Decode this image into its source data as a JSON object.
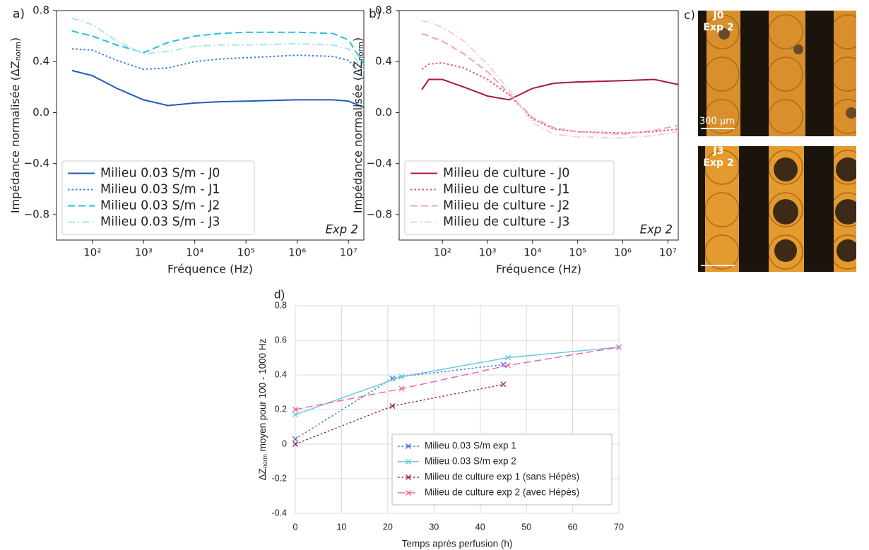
{
  "chart_data": [
    {
      "type": "line",
      "panel_label": "a)",
      "xscale": "log",
      "frame": true,
      "grid": false,
      "legend": "lower left",
      "xlabel": "Fréquence (Hz)",
      "ylabel": {
        "text": "Impédance normalisée (ΔZ",
        "sub": "norm",
        "end": ")"
      },
      "annotation": "Exp 2",
      "xlim": [
        20,
        20000000
      ],
      "xticks": [
        {
          "value": 100,
          "label": "10²"
        },
        {
          "value": 1000,
          "label": "10³"
        },
        {
          "value": 10000,
          "label": "10⁴"
        },
        {
          "value": 100000,
          "label": "10⁵"
        },
        {
          "value": 1000000,
          "label": "10⁶"
        },
        {
          "value": 10000000,
          "label": "10⁷"
        }
      ],
      "ylim": [
        -1.0,
        0.8
      ],
      "yticks": [
        {
          "value": -0.8,
          "label": "−0.8"
        },
        {
          "value": -0.4,
          "label": "−0.4"
        },
        {
          "value": 0,
          "label": "0.0"
        },
        0.4,
        0.8
      ],
      "x": [
        40,
        100,
        300,
        1000,
        3000,
        10000,
        30000,
        100000,
        1000000,
        5000000,
        10000000,
        20000000
      ],
      "series": [
        {
          "name": "Milieu 0.03 S/m - J0",
          "color": "#1f5cb8",
          "dash": "solid",
          "values": [
            0.33,
            0.29,
            0.19,
            0.1,
            0.055,
            0.075,
            0.085,
            0.09,
            0.1,
            0.1,
            0.09,
            0.04
          ]
        },
        {
          "name": "Milieu 0.03 S/m - J1",
          "color": "#3d7fe0",
          "dash": "dotted",
          "values": [
            0.5,
            0.49,
            0.41,
            0.34,
            0.35,
            0.4,
            0.42,
            0.43,
            0.45,
            0.44,
            0.41,
            0.28
          ]
        },
        {
          "name": "Milieu 0.03 S/m - J2",
          "color": "#1fc0ea",
          "dash": "dashed",
          "values": [
            0.64,
            0.6,
            0.53,
            0.47,
            0.55,
            0.6,
            0.62,
            0.63,
            0.63,
            0.62,
            0.57,
            0.38
          ]
        },
        {
          "name": "Milieu 0.03 S/m - J3",
          "color": "#a9e3f5",
          "dash": "dashdot",
          "values": [
            0.74,
            0.69,
            0.56,
            0.46,
            0.48,
            0.52,
            0.53,
            0.53,
            0.54,
            0.53,
            0.5,
            0.33
          ]
        }
      ]
    },
    {
      "type": "line",
      "panel_label": "b)",
      "xscale": "log",
      "frame": true,
      "grid": false,
      "legend": "lower left",
      "xlabel": "Fréquence (Hz)",
      "ylabel": {
        "text": "Impédance normalisée (ΔZ",
        "sub": "norm",
        "end": ")"
      },
      "annotation": "Exp 2",
      "xlim": [
        11,
        17000000
      ],
      "xticks": [
        {
          "value": 100,
          "label": "10²"
        },
        {
          "value": 1000,
          "label": "10³"
        },
        {
          "value": 10000,
          "label": "10⁴"
        },
        {
          "value": 100000,
          "label": "10⁵"
        },
        {
          "value": 1000000,
          "label": "10⁶"
        },
        {
          "value": 10000000,
          "label": "10⁷"
        }
      ],
      "ylim": [
        -1.0,
        0.8
      ],
      "yticks": [
        {
          "value": -0.8,
          "label": "−0.8"
        },
        {
          "value": -0.4,
          "label": "−0.4"
        },
        {
          "value": 0,
          "label": "0.0"
        },
        0.4,
        0.8
      ],
      "x": [
        35,
        50,
        100,
        300,
        1000,
        3000,
        10000,
        30000,
        100000,
        1000000,
        5000000,
        17000000
      ],
      "series": [
        {
          "name": "Milieu de culture - J0",
          "color": "#a8174a",
          "dash": "solid",
          "values": [
            0.18,
            0.26,
            0.26,
            0.2,
            0.13,
            0.1,
            0.19,
            0.23,
            0.24,
            0.25,
            0.26,
            0.22
          ]
        },
        {
          "name": "Milieu de culture - J1",
          "color": "#e8508a",
          "dash": "dotted",
          "values": [
            0.34,
            0.38,
            0.39,
            0.35,
            0.26,
            0.14,
            -0.05,
            -0.13,
            -0.15,
            -0.16,
            -0.15,
            -0.13
          ]
        },
        {
          "name": "Milieu de culture - J2",
          "color": "#f4a0c0",
          "dash": "dashed",
          "values": [
            0.62,
            0.6,
            0.56,
            0.46,
            0.32,
            0.15,
            -0.04,
            -0.12,
            -0.15,
            -0.17,
            -0.14,
            -0.1
          ]
        },
        {
          "name": "Milieu de culture - J3",
          "color": "#f8cde0",
          "dash": "dashdot",
          "values": [
            0.72,
            0.71,
            0.67,
            0.56,
            0.38,
            0.18,
            -0.08,
            -0.17,
            -0.19,
            -0.2,
            -0.18,
            -0.15
          ]
        }
      ]
    },
    {
      "type": "line",
      "panel_label": "d)",
      "xscale": "linear",
      "frame": false,
      "grid": true,
      "legend": "lower right",
      "xlabel": "Temps après perfusion (h)",
      "ylabel": {
        "text": "ΔZ",
        "sub": "norm",
        "end": " moyen pour 100 - 1000 Hz"
      },
      "xlim": [
        0,
        70
      ],
      "xticks": [
        0,
        10,
        20,
        30,
        40,
        50,
        60,
        70
      ],
      "ylim": [
        -0.4,
        0.8
      ],
      "yticks": [
        -0.4,
        -0.2,
        0,
        0.2,
        0.4,
        0.6,
        0.8
      ],
      "series": [
        {
          "name": "Milieu 0.03 S/m exp 1",
          "color": "#3b6fd6",
          "dash": "dotted",
          "marker": "x",
          "x": [
            0,
            21,
            23,
            45
          ],
          "values": [
            0.03,
            0.38,
            0.39,
            0.46
          ]
        },
        {
          "name": "Milieu 0.03 S/m exp 2",
          "color": "#5cc8e2",
          "dash": "solid",
          "marker": "x",
          "x": [
            0,
            23,
            46,
            70
          ],
          "values": [
            0.17,
            0.39,
            0.5,
            0.56
          ]
        },
        {
          "name": "Milieu de culture exp 1 (sans Hépès)",
          "color": "#9b1b40",
          "dash": "dotted",
          "marker": "x",
          "x": [
            0,
            21,
            45
          ],
          "values": [
            0,
            0.22,
            0.345
          ]
        },
        {
          "name": "Milieu de culture exp 2 (avec Hépès)",
          "color": "#f0609a",
          "dash": "dashed",
          "marker": "x",
          "x": [
            0,
            23,
            46,
            70
          ],
          "values": [
            0.2,
            0.32,
            0.455,
            0.56
          ]
        }
      ]
    }
  ],
  "micrographs": {
    "panel_label": "c)",
    "images": [
      {
        "title": "J0",
        "subtitle": "Exp 2",
        "scale_bar": "300 µm"
      },
      {
        "title": "J3",
        "subtitle": "Exp 2"
      }
    ]
  }
}
